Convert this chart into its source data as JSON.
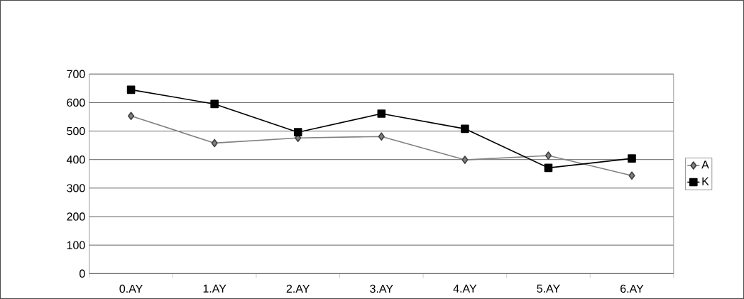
{
  "chart_data": {
    "type": "line",
    "categories": [
      "0.AY",
      "1.AY",
      "2.AY",
      "3.AY",
      "4.AY",
      "5.AY",
      "6.AY"
    ],
    "series": [
      {
        "name": "A",
        "color": "#808080",
        "marker": "diamond",
        "values": [
          553,
          458,
          476,
          481,
          399,
          414,
          344
        ]
      },
      {
        "name": "K",
        "color": "#000000",
        "marker": "square",
        "values": [
          645,
          595,
          496,
          561,
          508,
          371,
          404
        ]
      }
    ],
    "ylim": [
      0,
      700
    ],
    "yticks": [
      0,
      100,
      200,
      300,
      400,
      500,
      600,
      700
    ],
    "grid": "y",
    "legend": "right",
    "line_style": "solid"
  }
}
